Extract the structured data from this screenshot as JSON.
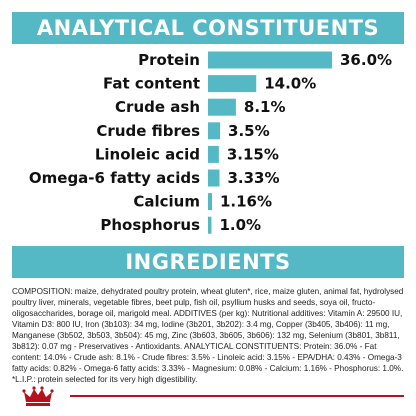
{
  "sections": {
    "analytical_title": "ANALYTICAL CONSTITUENTS",
    "ingredients_title": "INGREDIENTS"
  },
  "colors": {
    "banner": "#54b8c5",
    "bar": "#54b8c5",
    "brand_red": "#b5121b"
  },
  "chart_data": {
    "type": "bar",
    "orientation": "horizontal",
    "title": "",
    "categories": [
      "Protein",
      "Fat content",
      "Crude ash",
      "Crude fibres",
      "Linoleic acid",
      "Omega-6 fatty acids",
      "Calcium",
      "Phosphorus"
    ],
    "values": [
      36.0,
      14.0,
      8.1,
      3.5,
      3.15,
      3.33,
      1.16,
      1.0
    ],
    "value_labels": [
      "36.0%",
      "14.0%",
      "8.1%",
      "3.5%",
      "3.15%",
      "3.33%",
      "1.16%",
      "1.0%"
    ],
    "unit": "%",
    "xlim": [
      0,
      36.0
    ],
    "grid": false
  },
  "ingredients_text": "COMPOSITION: maize, dehydrated poultry protein, wheat gluten*, rice, maize gluten, animal fat, hydrolysed poultry liver, minerals, vegetable fibres, beet pulp, fish oil, psyllium husks and seeds, soya oil, fructo-oligosaccharides, borage oil, marigold meal. ADDITIVES (per kg): Nutritional additives: Vitamin A: 29500 IU, Vitamin D3: 800 IU, Iron (3b103): 34 mg, Iodine (3b201, 3b202): 3.4 mg, Copper (3b405, 3b406): 11 mg, Manganese (3b502, 3b503, 3b504): 45 mg, Zinc (3b603, 3b605, 3b606): 132 mg, Selenium (3b801, 3b811, 3b812): 0.07 mg - Preservatives - Antioxidants. ANALYTICAL CONSTITUENTS: Protein: 36.0% - Fat content: 14.0% - Crude ash: 8.1% - Crude fibres: 3.5% - Linoleic acid: 3.15% - EPA/DHA: 0.43% - Omega-3 fatty acids: 0.82% - Omega-6 fatty acids: 3.33% - Magnesium: 0.08% - Calcium: 1.16% - Phosphorus: 1.0%. *L.I.P.: protein selected for its very high digestibility.",
  "brand": {
    "logo_icon": "crown-icon"
  }
}
